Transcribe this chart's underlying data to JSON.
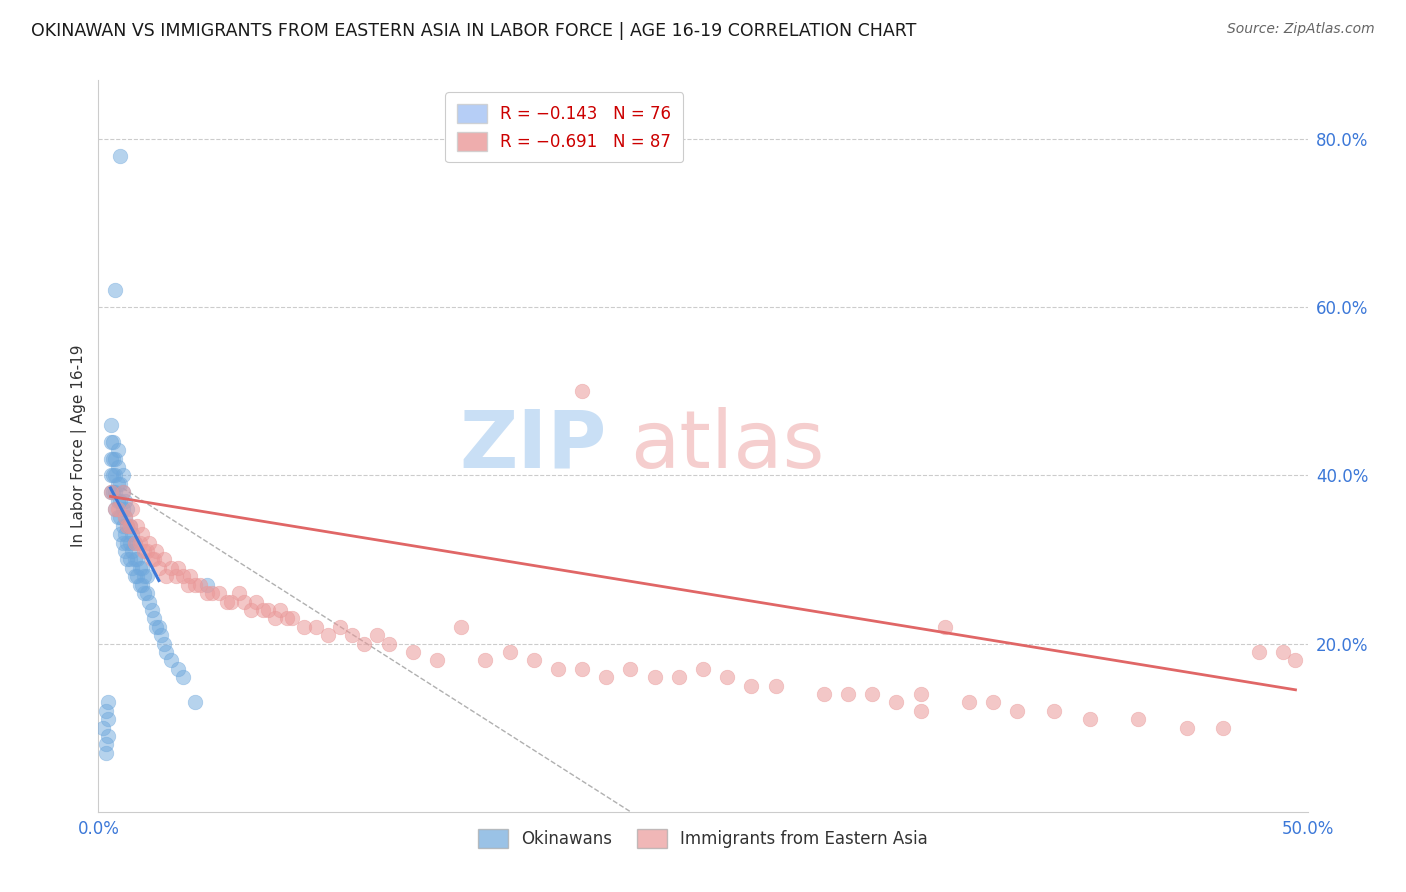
{
  "title": "OKINAWAN VS IMMIGRANTS FROM EASTERN ASIA IN LABOR FORCE | AGE 16-19 CORRELATION CHART",
  "source": "Source: ZipAtlas.com",
  "ylabel": "In Labor Force | Age 16-19",
  "right_ytick_labels": [
    "80.0%",
    "60.0%",
    "40.0%",
    "20.0%"
  ],
  "right_ytick_values": [
    0.8,
    0.6,
    0.4,
    0.2
  ],
  "xlim": [
    0.0,
    0.5
  ],
  "ylim": [
    0.0,
    0.87
  ],
  "color_blue": "#6fa8dc",
  "color_pink": "#ea9999",
  "color_blue_line": "#3c78d8",
  "color_pink_line": "#e06666",
  "color_dashed_line": "#b0b0b0",
  "legend_box_color_blue": "#a4c2f4",
  "legend_box_color_pink": "#ea9999",
  "blue_scatter_x": [
    0.002,
    0.003,
    0.003,
    0.003,
    0.004,
    0.004,
    0.004,
    0.005,
    0.005,
    0.005,
    0.005,
    0.005,
    0.006,
    0.006,
    0.006,
    0.006,
    0.007,
    0.007,
    0.007,
    0.007,
    0.007,
    0.008,
    0.008,
    0.008,
    0.008,
    0.008,
    0.009,
    0.009,
    0.009,
    0.009,
    0.009,
    0.01,
    0.01,
    0.01,
    0.01,
    0.01,
    0.011,
    0.011,
    0.011,
    0.011,
    0.012,
    0.012,
    0.012,
    0.012,
    0.013,
    0.013,
    0.013,
    0.014,
    0.014,
    0.014,
    0.015,
    0.015,
    0.015,
    0.016,
    0.016,
    0.017,
    0.017,
    0.018,
    0.018,
    0.019,
    0.019,
    0.02,
    0.02,
    0.021,
    0.022,
    0.023,
    0.024,
    0.025,
    0.026,
    0.027,
    0.028,
    0.03,
    0.033,
    0.035,
    0.04,
    0.045
  ],
  "blue_scatter_y": [
    0.1,
    0.07,
    0.08,
    0.12,
    0.09,
    0.11,
    0.13,
    0.38,
    0.4,
    0.42,
    0.44,
    0.46,
    0.38,
    0.4,
    0.42,
    0.44,
    0.36,
    0.38,
    0.4,
    0.42,
    0.62,
    0.35,
    0.37,
    0.39,
    0.41,
    0.43,
    0.33,
    0.35,
    0.37,
    0.39,
    0.78,
    0.32,
    0.34,
    0.36,
    0.38,
    0.4,
    0.31,
    0.33,
    0.35,
    0.37,
    0.3,
    0.32,
    0.34,
    0.36,
    0.3,
    0.32,
    0.34,
    0.29,
    0.31,
    0.33,
    0.28,
    0.3,
    0.32,
    0.28,
    0.3,
    0.27,
    0.29,
    0.27,
    0.29,
    0.26,
    0.28,
    0.26,
    0.28,
    0.25,
    0.24,
    0.23,
    0.22,
    0.22,
    0.21,
    0.2,
    0.19,
    0.18,
    0.17,
    0.16,
    0.13,
    0.27
  ],
  "pink_scatter_x": [
    0.005,
    0.007,
    0.008,
    0.01,
    0.011,
    0.012,
    0.013,
    0.014,
    0.015,
    0.016,
    0.017,
    0.018,
    0.019,
    0.02,
    0.021,
    0.022,
    0.023,
    0.024,
    0.025,
    0.027,
    0.028,
    0.03,
    0.032,
    0.033,
    0.035,
    0.037,
    0.038,
    0.04,
    0.042,
    0.045,
    0.047,
    0.05,
    0.053,
    0.055,
    0.058,
    0.06,
    0.063,
    0.065,
    0.068,
    0.07,
    0.073,
    0.075,
    0.078,
    0.08,
    0.085,
    0.09,
    0.095,
    0.1,
    0.105,
    0.11,
    0.115,
    0.12,
    0.13,
    0.14,
    0.15,
    0.16,
    0.17,
    0.18,
    0.19,
    0.2,
    0.21,
    0.22,
    0.23,
    0.24,
    0.25,
    0.26,
    0.27,
    0.28,
    0.3,
    0.31,
    0.32,
    0.33,
    0.34,
    0.35,
    0.36,
    0.37,
    0.38,
    0.395,
    0.41,
    0.43,
    0.45,
    0.465,
    0.48,
    0.49,
    0.495,
    0.34,
    0.2
  ],
  "pink_scatter_y": [
    0.38,
    0.36,
    0.36,
    0.38,
    0.35,
    0.34,
    0.34,
    0.36,
    0.32,
    0.34,
    0.32,
    0.33,
    0.31,
    0.31,
    0.32,
    0.3,
    0.3,
    0.31,
    0.29,
    0.3,
    0.28,
    0.29,
    0.28,
    0.29,
    0.28,
    0.27,
    0.28,
    0.27,
    0.27,
    0.26,
    0.26,
    0.26,
    0.25,
    0.25,
    0.26,
    0.25,
    0.24,
    0.25,
    0.24,
    0.24,
    0.23,
    0.24,
    0.23,
    0.23,
    0.22,
    0.22,
    0.21,
    0.22,
    0.21,
    0.2,
    0.21,
    0.2,
    0.19,
    0.18,
    0.22,
    0.18,
    0.19,
    0.18,
    0.17,
    0.17,
    0.16,
    0.17,
    0.16,
    0.16,
    0.17,
    0.16,
    0.15,
    0.15,
    0.14,
    0.14,
    0.14,
    0.13,
    0.14,
    0.22,
    0.13,
    0.13,
    0.12,
    0.12,
    0.11,
    0.11,
    0.1,
    0.1,
    0.19,
    0.19,
    0.18,
    0.12,
    0.5
  ],
  "blue_line_x": [
    0.005,
    0.025
  ],
  "blue_line_y": [
    0.385,
    0.275
  ],
  "pink_line_x": [
    0.005,
    0.495
  ],
  "pink_line_y": [
    0.375,
    0.145
  ],
  "dashed_line_x": [
    0.01,
    0.22
  ],
  "dashed_line_y": [
    0.385,
    0.0
  ]
}
